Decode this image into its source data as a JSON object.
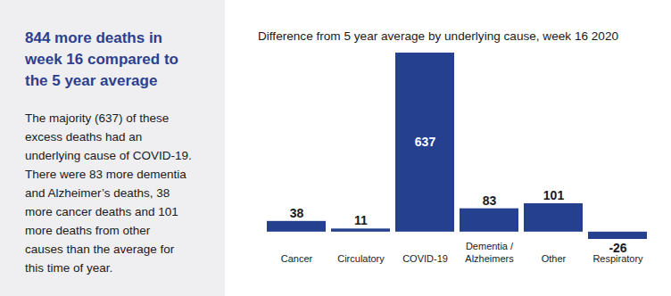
{
  "chart_data": {
    "type": "bar",
    "title": "Difference from 5 year average by underlying cause, week 16 2020",
    "categories": [
      "Cancer",
      "Circulatory",
      "COVID-19",
      "Dementia /\nAlzheimers",
      "Other",
      "Respiratory"
    ],
    "values": [
      38,
      11,
      637,
      83,
      101,
      -26
    ],
    "color": "#24408e",
    "data_labels": true,
    "tick_labels": "x"
  },
  "panel": {
    "heading": [
      "844 more deaths in",
      "week 16 compared to",
      "the 5 year average"
    ],
    "text": [
      "The majority (637) of these",
      "excess deaths had an",
      "underlying cause of COVID-19.",
      "There were 83 more dementia",
      "and Alzheimer’s deaths, 38",
      "more cancer deaths and 101",
      "more deaths from other",
      "causes than the average for",
      "this time of year."
    ]
  }
}
